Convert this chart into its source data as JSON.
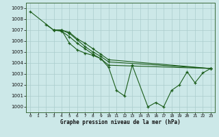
{
  "title": "Graphe pression niveau de la mer (hPa)",
  "bg_color": "#cce8e8",
  "grid_color": "#aacccc",
  "line_color": "#1a5c1a",
  "xlim": [
    -0.5,
    23.5
  ],
  "ylim": [
    999.5,
    1009.5
  ],
  "yticks": [
    1000,
    1001,
    1002,
    1003,
    1004,
    1005,
    1006,
    1007,
    1008,
    1009
  ],
  "xticks": [
    0,
    1,
    2,
    3,
    4,
    5,
    6,
    7,
    8,
    9,
    10,
    11,
    12,
    13,
    14,
    15,
    16,
    17,
    18,
    19,
    20,
    21,
    22,
    23
  ],
  "lines": [
    {
      "x": [
        0,
        3,
        4,
        5,
        6,
        7,
        8,
        9,
        10,
        11,
        12,
        13,
        15,
        16,
        17,
        18,
        19,
        20,
        21,
        22,
        23
      ],
      "y": [
        1008.7,
        1007.0,
        1007.0,
        1005.8,
        1005.2,
        1004.9,
        1004.7,
        1004.4,
        1003.6,
        1001.5,
        1001.0,
        1003.8,
        1000.0,
        1000.4,
        1000.0,
        1001.5,
        1002.0,
        1003.2,
        1002.2,
        1003.1,
        1003.5
      ]
    },
    {
      "x": [
        2,
        3,
        4,
        5,
        6,
        7,
        8,
        9,
        10,
        23
      ],
      "y": [
        1007.5,
        1007.0,
        1006.9,
        1006.4,
        1005.8,
        1005.3,
        1004.8,
        1004.4,
        1003.8,
        1003.5
      ]
    },
    {
      "x": [
        3,
        4,
        5,
        6,
        7,
        8,
        9,
        10,
        23
      ],
      "y": [
        1007.0,
        1007.0,
        1006.8,
        1006.2,
        1005.8,
        1005.3,
        1004.8,
        1004.3,
        1003.5
      ]
    },
    {
      "x": [
        3,
        4,
        5,
        6,
        7,
        8,
        9,
        10,
        23
      ],
      "y": [
        1007.0,
        1007.0,
        1006.7,
        1006.1,
        1005.5,
        1005.0,
        1004.6,
        1004.1,
        1003.5
      ]
    }
  ]
}
